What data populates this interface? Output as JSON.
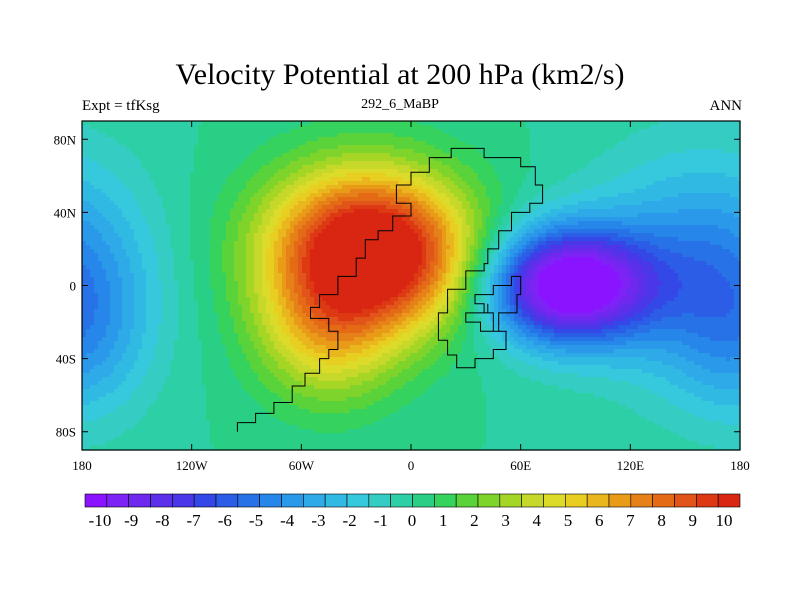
{
  "chart_data": {
    "type": "heatmap",
    "title": "Velocity Potential at 200 hPa (km2/s)",
    "subtitle_left": "Expt = tfKsg",
    "subtitle_center": "292_6_MaBP",
    "subtitle_right": "ANN",
    "x_range": [
      -180,
      180
    ],
    "y_range": [
      -90,
      90
    ],
    "x_ticks": [
      {
        "value": -180,
        "label": "180"
      },
      {
        "value": -120,
        "label": "120W"
      },
      {
        "value": -60,
        "label": "60W"
      },
      {
        "value": 0,
        "label": "0"
      },
      {
        "value": 60,
        "label": "60E"
      },
      {
        "value": 120,
        "label": "120E"
      },
      {
        "value": 180,
        "label": "180"
      }
    ],
    "y_ticks": [
      {
        "value": 80,
        "label": "80N"
      },
      {
        "value": 40,
        "label": "40N"
      },
      {
        "value": 0,
        "label": "0"
      },
      {
        "value": -40,
        "label": "40S"
      },
      {
        "value": -80,
        "label": "80S"
      }
    ],
    "fields": [
      {
        "lon": -25,
        "lat": 22,
        "amp": 10.8,
        "slon": 38,
        "slat": 30
      },
      {
        "lon": -45,
        "lat": -25,
        "amp": 4.5,
        "slon": 28,
        "slat": 28
      },
      {
        "lon": 10,
        "lat": 5,
        "amp": 2.0,
        "slon": 30,
        "slat": 25
      },
      {
        "lon": 85,
        "lat": 0,
        "amp": -11.0,
        "slon": 32,
        "slat": 22
      },
      {
        "lon": 150,
        "lat": 10,
        "amp": -3.0,
        "slon": 40,
        "slat": 45
      },
      {
        "lon": 180,
        "lat": 0,
        "amp": -2.0,
        "slon": 30,
        "slat": 40
      },
      {
        "lon": -180,
        "lat": -35,
        "amp": -1.5,
        "slon": 25,
        "slat": 30
      }
    ],
    "continent_outline": [
      [
        -95,
        -80
      ],
      [
        -95,
        -75
      ],
      [
        -85,
        -75
      ],
      [
        -85,
        -70
      ],
      [
        -75,
        -70
      ],
      [
        -75,
        -64
      ],
      [
        -65,
        -64
      ],
      [
        -65,
        -55
      ],
      [
        -58,
        -55
      ],
      [
        -58,
        -48
      ],
      [
        -50,
        -48
      ],
      [
        -50,
        -40
      ],
      [
        -45,
        -40
      ],
      [
        -45,
        -35
      ],
      [
        -40,
        -35
      ],
      [
        -40,
        -25
      ],
      [
        -45,
        -25
      ],
      [
        -45,
        -18
      ],
      [
        -55,
        -18
      ],
      [
        -55,
        -12
      ],
      [
        -50,
        -12
      ],
      [
        -50,
        -5
      ],
      [
        -40,
        -5
      ],
      [
        -40,
        5
      ],
      [
        -30,
        5
      ],
      [
        -30,
        15
      ],
      [
        -25,
        15
      ],
      [
        -25,
        25
      ],
      [
        -18,
        25
      ],
      [
        -18,
        30
      ],
      [
        -10,
        30
      ],
      [
        -10,
        38
      ],
      [
        0,
        38
      ],
      [
        0,
        45
      ],
      [
        -8,
        45
      ],
      [
        -8,
        55
      ],
      [
        0,
        55
      ],
      [
        0,
        62
      ],
      [
        10,
        62
      ],
      [
        10,
        70
      ],
      [
        22,
        70
      ],
      [
        22,
        75
      ],
      [
        40,
        75
      ],
      [
        40,
        70
      ],
      [
        60,
        70
      ],
      [
        60,
        65
      ],
      [
        68,
        65
      ],
      [
        68,
        55
      ],
      [
        72,
        55
      ],
      [
        72,
        45
      ],
      [
        65,
        45
      ],
      [
        65,
        40
      ],
      [
        55,
        40
      ],
      [
        55,
        30
      ],
      [
        48,
        30
      ],
      [
        48,
        20
      ],
      [
        42,
        20
      ],
      [
        42,
        12
      ],
      [
        40,
        12
      ],
      [
        40,
        8
      ],
      [
        30,
        8
      ],
      [
        30,
        -2
      ],
      [
        20,
        -2
      ],
      [
        20,
        -15
      ],
      [
        15,
        -15
      ],
      [
        15,
        -30
      ],
      [
        20,
        -30
      ],
      [
        20,
        -38
      ],
      [
        25,
        -38
      ],
      [
        25,
        -45
      ],
      [
        35,
        -45
      ],
      [
        35,
        -40
      ],
      [
        45,
        -40
      ],
      [
        45,
        -35
      ],
      [
        52,
        -35
      ],
      [
        52,
        -25
      ],
      [
        45,
        -25
      ],
      [
        45,
        -15
      ],
      [
        40,
        -15
      ],
      [
        40,
        -10
      ],
      [
        35,
        -10
      ],
      [
        35,
        -5
      ],
      [
        45,
        -5
      ],
      [
        45,
        0
      ],
      [
        55,
        0
      ],
      [
        55,
        5
      ],
      [
        60,
        5
      ],
      [
        60,
        -5
      ],
      [
        58,
        -5
      ],
      [
        58,
        -15
      ],
      [
        48,
        -15
      ],
      [
        48,
        -25
      ],
      [
        38,
        -25
      ],
      [
        38,
        -20
      ],
      [
        30,
        -20
      ],
      [
        30,
        -15
      ],
      [
        42,
        -15
      ],
      [
        42,
        -10
      ]
    ],
    "colorbar": {
      "labels": [
        "-10",
        "-9",
        "-8",
        "-7",
        "-6",
        "-5",
        "-4",
        "-3",
        "-2",
        "-1",
        "0",
        "1",
        "2",
        "3",
        "4",
        "5",
        "6",
        "7",
        "8",
        "9",
        "10"
      ],
      "colors": [
        "#8a14ff",
        "#7d23f5",
        "#6e28ee",
        "#5c2fea",
        "#4a37e8",
        "#3348e6",
        "#2b5de6",
        "#2872e8",
        "#2786ea",
        "#2a99ea",
        "#2eaae8",
        "#30bae3",
        "#36c9dd",
        "#35ccc3",
        "#2ccfa6",
        "#29cf85",
        "#35d25d",
        "#5ad33a",
        "#7fd42c",
        "#a5d626",
        "#c6d82a",
        "#dddb29",
        "#e7ce21",
        "#eab61e",
        "#e99a17",
        "#e6811a",
        "#e46a16",
        "#e1541a",
        "#dd3a14",
        "#d82613"
      ]
    }
  }
}
